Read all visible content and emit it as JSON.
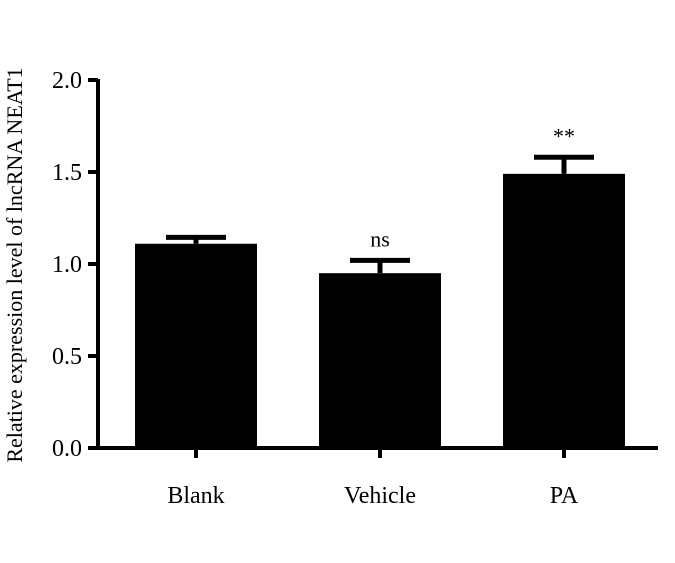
{
  "chart_data": {
    "type": "bar",
    "title": "",
    "xlabel": "",
    "ylabel": "Relative expression level of lncRNA NEAT1",
    "categories": [
      "Blank",
      "Vehicle",
      "PA"
    ],
    "values": [
      1.11,
      0.95,
      1.49
    ],
    "errors": [
      0.035,
      0.07,
      0.09
    ],
    "annotations": [
      "",
      "ns",
      "**"
    ],
    "ylim": [
      0,
      2.0
    ],
    "yticks": [
      0,
      0.5,
      1.0,
      1.5,
      2.0
    ],
    "ytick_labels": [
      "0.0",
      "0.5",
      "1.0",
      "1.5",
      "2.0"
    ],
    "grid": false,
    "bar_color": "#000000"
  }
}
